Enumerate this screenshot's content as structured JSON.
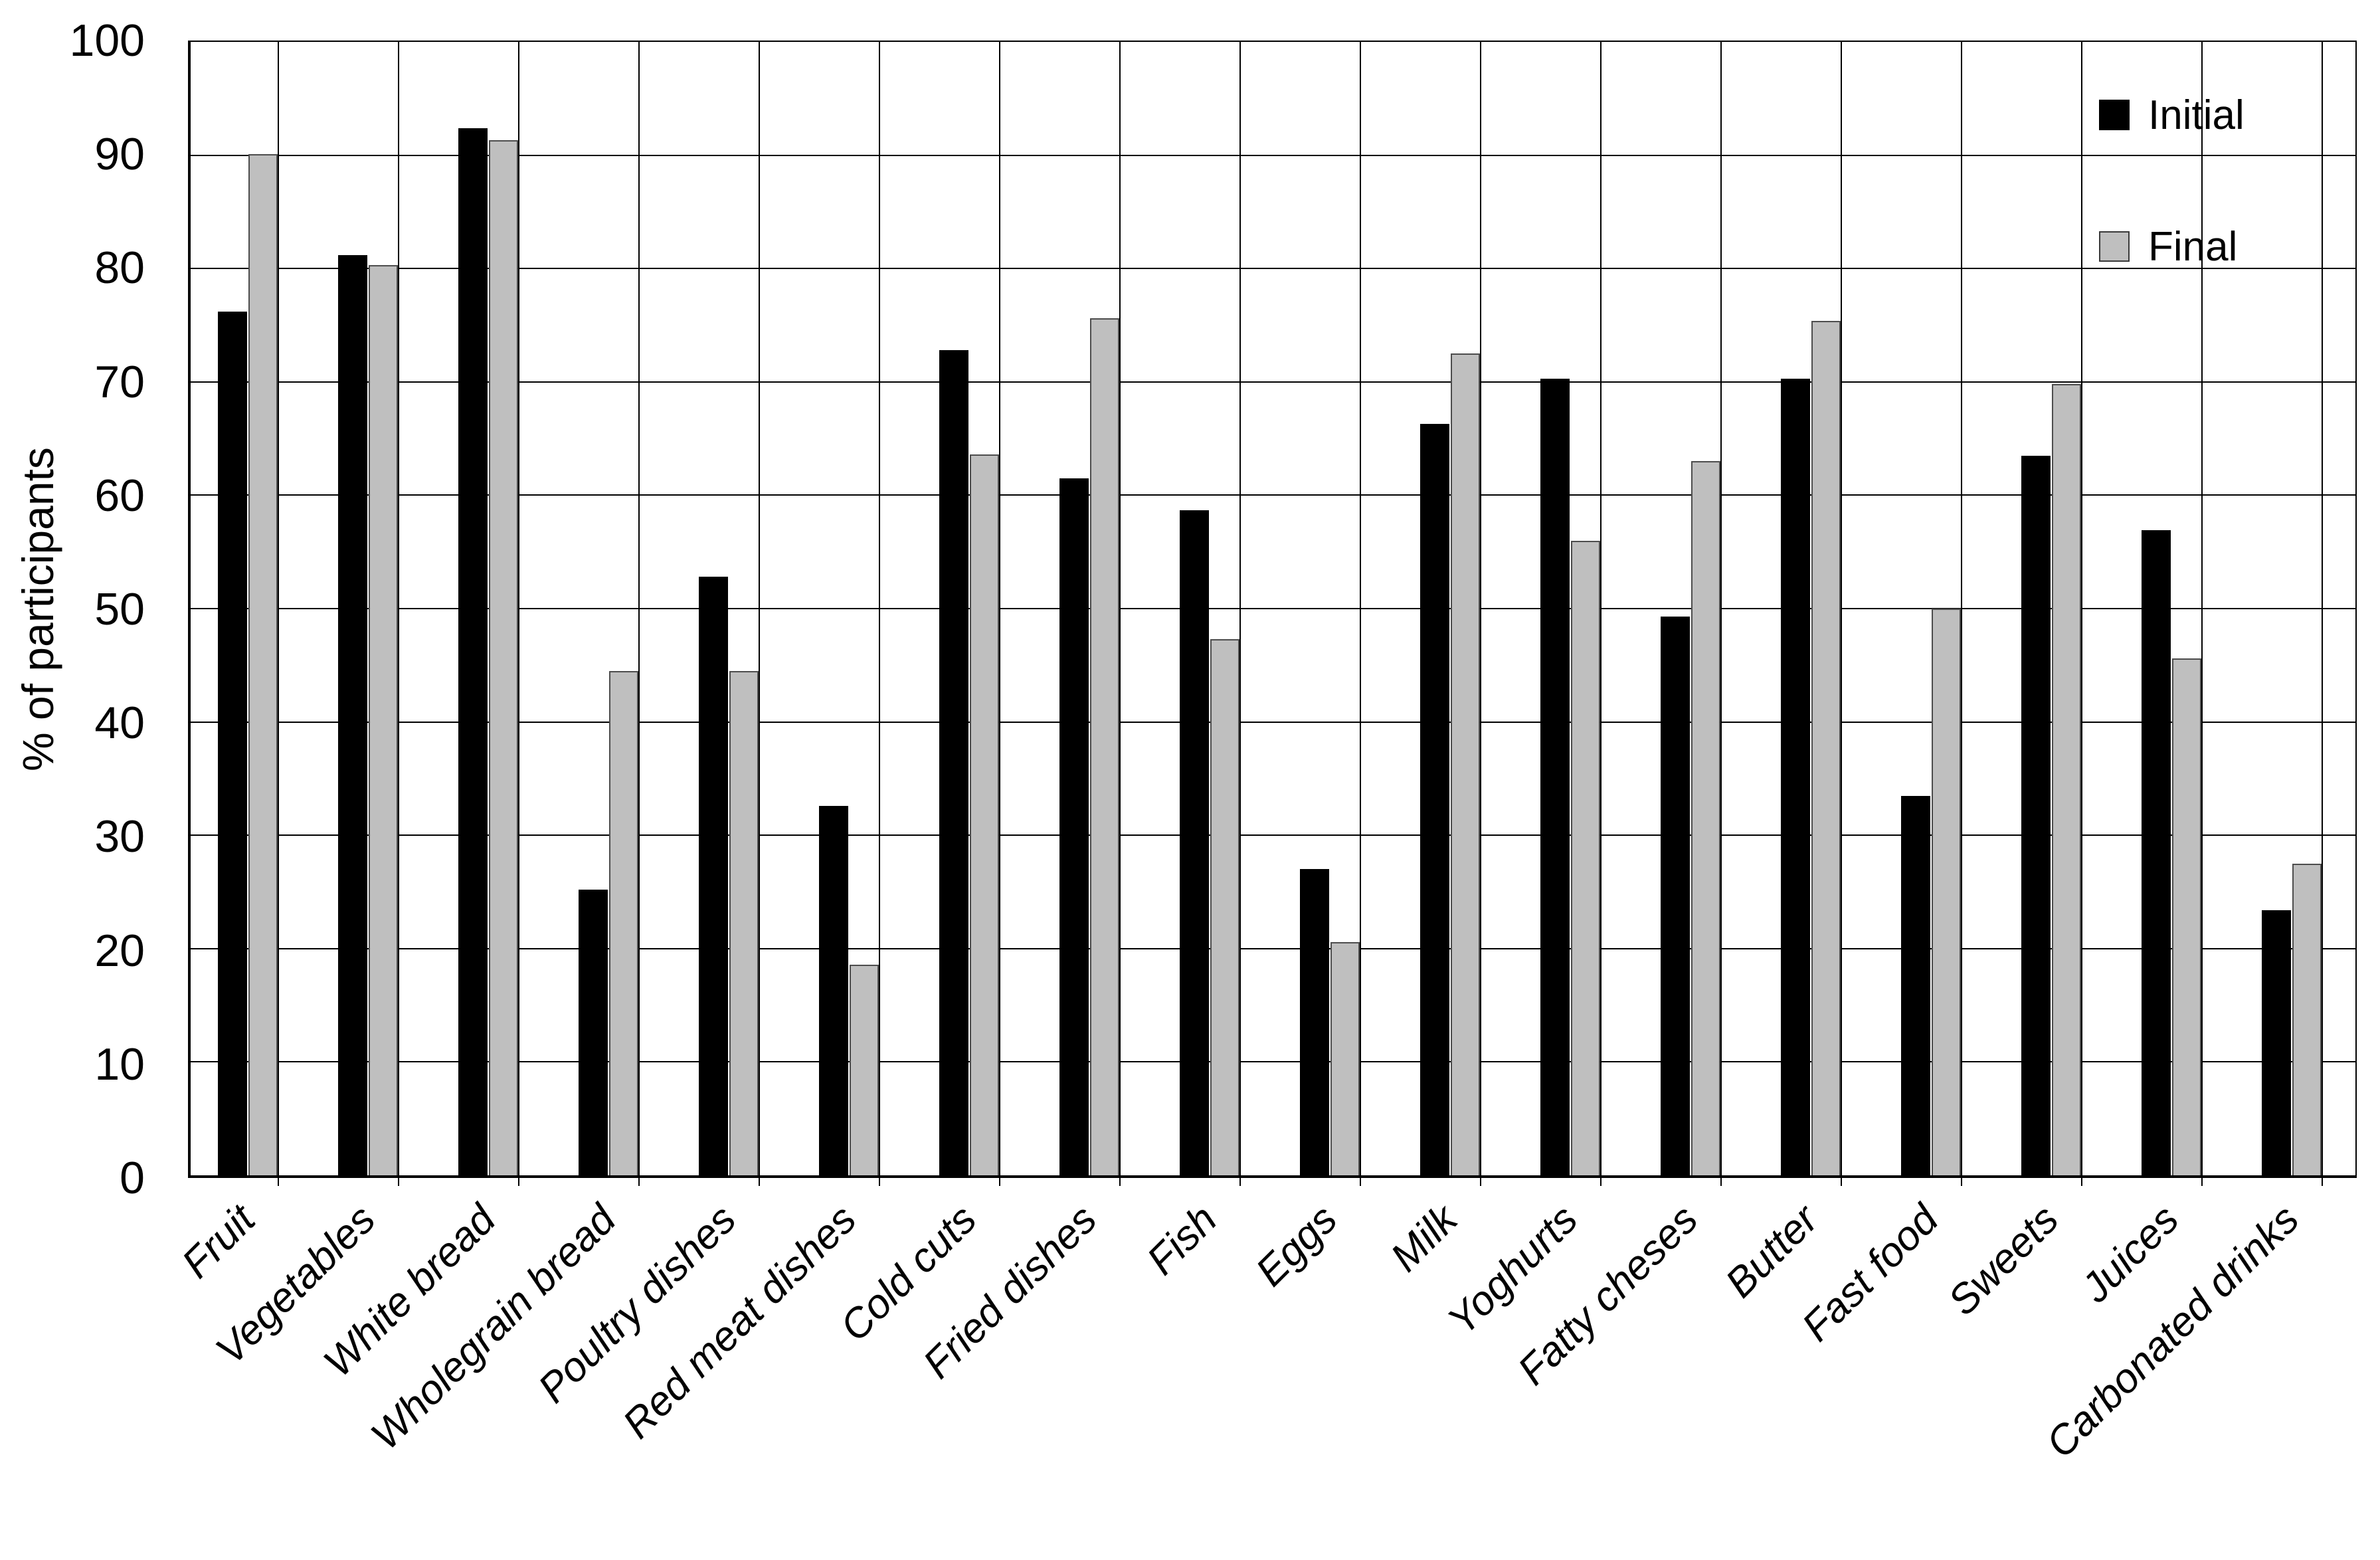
{
  "chart_data": {
    "type": "bar",
    "title": "",
    "ylabel": "% of participants",
    "xlabel": "",
    "ylim": [
      0,
      100
    ],
    "yticks": [
      0,
      10,
      20,
      30,
      40,
      50,
      60,
      70,
      80,
      90,
      100
    ],
    "grid": "horizontal gridlines plus vertical category separators",
    "legend_position": "top-right-inside",
    "categories": [
      "Fruit",
      "Vegetables",
      "White bread",
      "Wholegrain bread",
      "Poultry dishes",
      "Red meat dishes",
      "Cold cuts",
      "Fried dishes",
      "Fish",
      "Eggs",
      "Milk",
      "Yoghurts",
      "Fatty cheses",
      "Butter",
      "Fast food",
      "Sweets",
      "Juices",
      "Carbonated drinks"
    ],
    "series": [
      {
        "name": "Initial",
        "color": "#000000",
        "values": [
          76.2,
          81.2,
          92.4,
          25.2,
          52.8,
          32.6,
          72.8,
          61.5,
          58.7,
          27.0,
          66.3,
          70.3,
          49.3,
          70.3,
          33.5,
          63.5,
          56.9,
          23.4
        ]
      },
      {
        "name": "Final",
        "color": "#bfbfbf",
        "border_color": "#4d4d4d",
        "values": [
          90.1,
          80.3,
          91.3,
          44.5,
          44.5,
          18.6,
          63.6,
          75.6,
          47.3,
          20.6,
          72.5,
          56.0,
          63.0,
          75.4,
          50.0,
          69.8,
          45.6,
          27.5
        ]
      }
    ]
  }
}
